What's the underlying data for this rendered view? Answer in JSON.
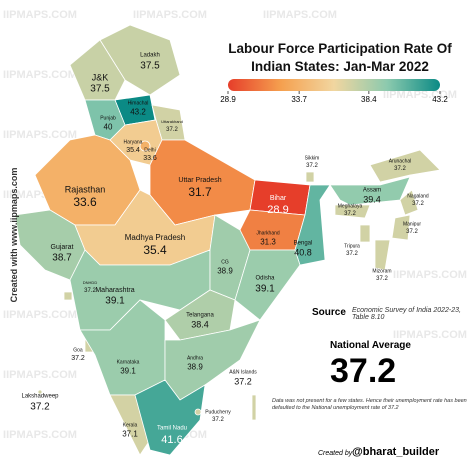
{
  "title": "Labour Force Participation Rate Of Indian States: Jan-Mar 2022",
  "watermark": "IIPMAPS.COM",
  "side_credit": "Created with www.iipmaps.com",
  "colorbar": {
    "ticks": [
      28.9,
      33.7,
      38.4,
      43.2
    ],
    "colors": [
      "#e63e2a",
      "#f5a04f",
      "#f1d6a0",
      "#8ccaae",
      "#0b8a85"
    ]
  },
  "states": [
    {
      "name": "Ladakh",
      "value": 37.5
    },
    {
      "name": "J&K",
      "value": 37.5
    },
    {
      "name": "Himachal",
      "value": 43.2
    },
    {
      "name": "Punjab",
      "value": 40
    },
    {
      "name": "Uttarakhand",
      "value": 37.2
    },
    {
      "name": "Haryana",
      "value": 35.4
    },
    {
      "name": "Delhi",
      "value": 33.6
    },
    {
      "name": "Rajasthan",
      "value": 33.6
    },
    {
      "name": "Uttar Pradesh",
      "value": 31.7
    },
    {
      "name": "Bihar",
      "value": 28.9
    },
    {
      "name": "Sikkim",
      "value": 37.2
    },
    {
      "name": "Arunachal",
      "value": 37.2
    },
    {
      "name": "Assam",
      "value": 39.4
    },
    {
      "name": "Nagaland",
      "value": 37.2
    },
    {
      "name": "Meghalaya",
      "value": 37.2
    },
    {
      "name": "Manipur",
      "value": 37.2
    },
    {
      "name": "Tripura",
      "value": 37.2
    },
    {
      "name": "Mizoram",
      "value": 37.2
    },
    {
      "name": "Gujarat",
      "value": 38.7
    },
    {
      "name": "Madhya Pradesh",
      "value": 35.4
    },
    {
      "name": "Jharkhand",
      "value": 31.3
    },
    {
      "name": "Bengal",
      "value": 40.8
    },
    {
      "name": "DNHDD",
      "value": 37.2
    },
    {
      "name": "Maharashtra",
      "value": 39.1
    },
    {
      "name": "CG",
      "value": 38.9
    },
    {
      "name": "Odisha",
      "value": 39.1
    },
    {
      "name": "Telangana",
      "value": 38.4
    },
    {
      "name": "Goa",
      "value": 37.2
    },
    {
      "name": "Karnataka",
      "value": 39.1
    },
    {
      "name": "Andhra",
      "value": 38.9
    },
    {
      "name": "A&N Islands",
      "value": 37.2
    },
    {
      "name": "Lakshadweep",
      "value": 37.2
    },
    {
      "name": "Kerala",
      "value": 37.1
    },
    {
      "name": "Tamil Nadu",
      "value": 41.6
    },
    {
      "name": "Puducherry",
      "value": 37.2
    }
  ],
  "source": {
    "label": "Source",
    "text": "Economic Survey of India 2022-23, Table 8.10"
  },
  "national_average": {
    "label": "National Average",
    "value": 37.2
  },
  "footnote": "Data was not present for a few states. Hence their unemployment rate has been defaulted to the National unemployment rate of 37.2",
  "credit": {
    "label": "Created by",
    "handle": "@bharat_builder"
  }
}
